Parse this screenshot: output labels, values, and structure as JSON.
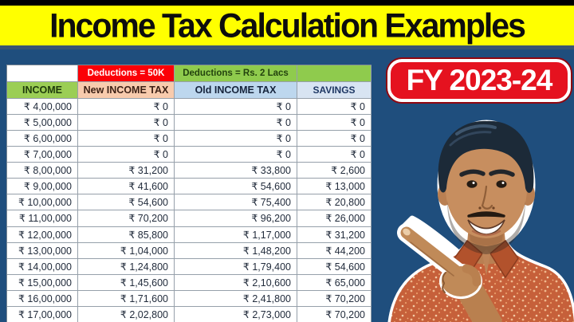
{
  "title": "Income Tax Calculation Examples",
  "badge": "FY 2023-24",
  "table": {
    "deduction_new": "Deductions = 50K",
    "deduction_old": "Deductions = Rs. 2 Lacs",
    "columns": [
      "INCOME",
      "New INCOME TAX",
      "Old INCOME TAX",
      "SAVINGS"
    ],
    "rows": [
      [
        "₹ 4,00,000",
        "₹ 0",
        "₹ 0",
        "₹ 0"
      ],
      [
        "₹ 5,00,000",
        "₹ 0",
        "₹ 0",
        "₹ 0"
      ],
      [
        "₹ 6,00,000",
        "₹ 0",
        "₹ 0",
        "₹ 0"
      ],
      [
        "₹ 7,00,000",
        "₹ 0",
        "₹ 0",
        "₹ 0"
      ],
      [
        "₹ 8,00,000",
        "₹ 31,200",
        "₹ 33,800",
        "₹ 2,600"
      ],
      [
        "₹ 9,00,000",
        "₹ 41,600",
        "₹ 54,600",
        "₹ 13,000"
      ],
      [
        "₹ 10,00,000",
        "₹ 54,600",
        "₹ 75,400",
        "₹ 20,800"
      ],
      [
        "₹ 11,00,000",
        "₹ 70,200",
        "₹ 96,200",
        "₹ 26,000"
      ],
      [
        "₹ 12,00,000",
        "₹ 85,800",
        "₹ 1,17,000",
        "₹ 31,200"
      ],
      [
        "₹ 13,00,000",
        "₹ 1,04,000",
        "₹ 1,48,200",
        "₹ 44,200"
      ],
      [
        "₹ 14,00,000",
        "₹ 1,24,800",
        "₹ 1,79,400",
        "₹ 54,600"
      ],
      [
        "₹ 15,00,000",
        "₹ 1,45,600",
        "₹ 2,10,600",
        "₹ 65,000"
      ],
      [
        "₹ 16,00,000",
        "₹ 1,71,600",
        "₹ 2,41,800",
        "₹ 70,200"
      ],
      [
        "₹ 17,00,000",
        "₹ 2,02,800",
        "₹ 2,73,000",
        "₹ 70,200"
      ]
    ]
  },
  "colors": {
    "background_blue": "#1F4E7D",
    "title_yellow": "#FFFF00",
    "badge_red": "#E5121F",
    "deduction_red": "#FB0007",
    "header_green": "#9BCE55",
    "header_peach": "#F8CBAD",
    "header_blue": "#BDD7EE",
    "header_savings": "#D8E4F2"
  }
}
